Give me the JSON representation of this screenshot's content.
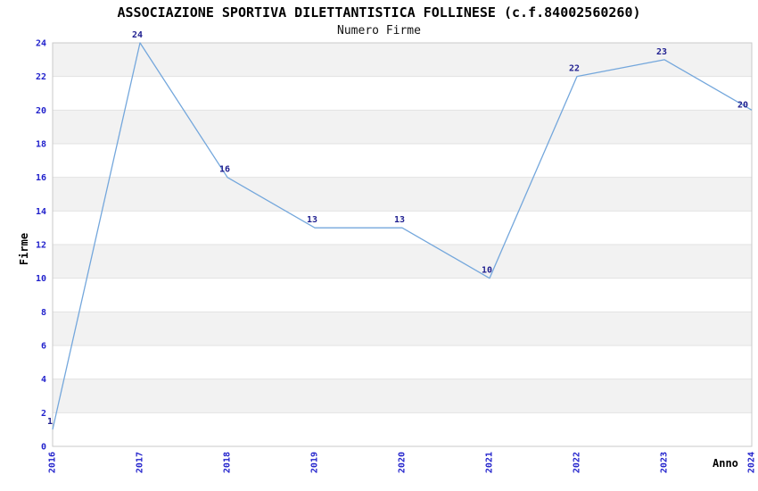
{
  "page": {
    "background": "#FFFFFF"
  },
  "chart_data": {
    "type": "line",
    "title": "ASSOCIAZIONE SPORTIVA DILETTANTISTICA FOLLINESE (c.f.84002560260)",
    "subtitle": "Numero Firme",
    "xlabel": "Anno",
    "ylabel": "Firme",
    "categories": [
      "2016",
      "2017",
      "2018",
      "2019",
      "2020",
      "2021",
      "2022",
      "2023",
      "2024"
    ],
    "values": [
      1,
      24,
      16,
      13,
      13,
      10,
      22,
      23,
      20
    ],
    "point_labels": [
      "1",
      "24",
      "16",
      "13",
      "13",
      "10",
      "22",
      "23",
      "20"
    ],
    "ylim": [
      0,
      24
    ],
    "yticks": [
      0,
      2,
      4,
      6,
      8,
      10,
      12,
      14,
      16,
      18,
      20,
      22,
      24
    ],
    "grid": "horizontal-bands-alternating",
    "legend": "none",
    "colors": {
      "line": "#74A7DC",
      "tick_labels": "#2222CC",
      "point_labels": "#1F1F90",
      "band_gray": "#F2F2F2",
      "band_white": "#FFFFFF",
      "gridline": "#E2E2E2",
      "plot_border": "#C9C9C9",
      "title_text": "#000000"
    }
  }
}
